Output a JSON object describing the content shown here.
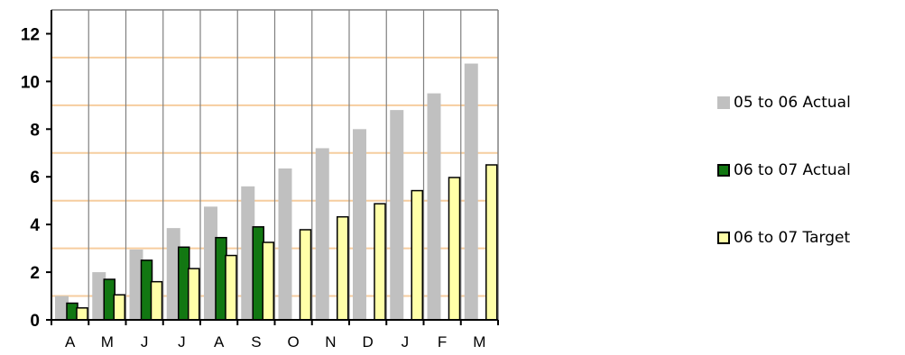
{
  "chart_data": {
    "type": "bar",
    "categories": [
      "A",
      "M",
      "J",
      "J",
      "A",
      "S",
      "O",
      "N",
      "D",
      "J",
      "F",
      "M"
    ],
    "series": [
      {
        "name": "05 to 06 Actual",
        "color": "#c0c0c0",
        "border": "none",
        "values": [
          1.0,
          2.0,
          2.95,
          3.85,
          4.75,
          5.6,
          6.35,
          7.2,
          8.0,
          8.8,
          9.5,
          10.75
        ]
      },
      {
        "name": "06 to 07 Actual",
        "color": "#127712",
        "border": "#000000",
        "values": [
          0.7,
          1.7,
          2.5,
          3.05,
          3.45,
          3.9,
          null,
          null,
          null,
          null,
          null,
          null
        ]
      },
      {
        "name": "06 to 07 Target",
        "color": "#ffffa8",
        "border": "#000000",
        "values": [
          0.5,
          1.05,
          1.6,
          2.15,
          2.7,
          3.25,
          3.78,
          4.32,
          4.87,
          5.42,
          5.97,
          6.5
        ]
      }
    ],
    "yticks": [
      0,
      2,
      4,
      6,
      8,
      10,
      12
    ],
    "ylim": [
      0,
      13
    ],
    "grid": {
      "major": "grey vertical lines between categories",
      "minor": "orange horizontal lines at odd values"
    },
    "grid_colors": {
      "vertical": "#808080",
      "horizontal": "#f6cd9f"
    },
    "legend_position": "right",
    "xlabel": "",
    "ylabel": "",
    "title": ""
  }
}
